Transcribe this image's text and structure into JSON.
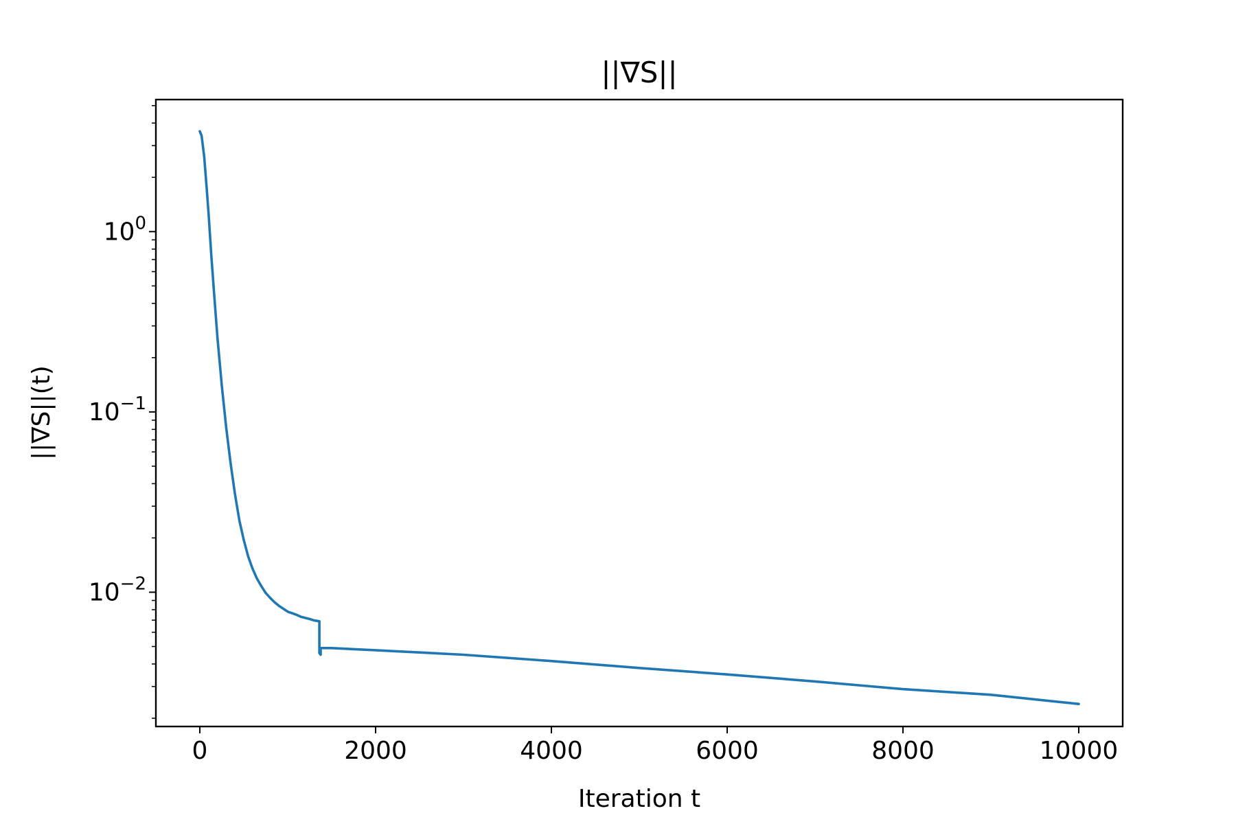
{
  "chart_data": {
    "type": "line",
    "title": "||∇S||",
    "xlabel": "Iteration t",
    "ylabel": "||∇S||(t)",
    "xlim": [
      -500,
      10500
    ],
    "ylim": [
      0.0018,
      5.4
    ],
    "yscale": "log",
    "grid": false,
    "xticks": [
      0,
      2000,
      4000,
      6000,
      8000,
      10000
    ],
    "xtick_labels": [
      "0",
      "2000",
      "4000",
      "6000",
      "8000",
      "10000"
    ],
    "yticks": [
      {
        "value": 1,
        "base": "10",
        "exp": "0"
      },
      {
        "value": 0.1,
        "base": "10",
        "exp": "−1"
      },
      {
        "value": 0.01,
        "base": "10",
        "exp": "−2"
      }
    ],
    "series": [
      {
        "color": "#1f77b4",
        "x": [
          0,
          20,
          50,
          80,
          100,
          130,
          160,
          200,
          250,
          300,
          350,
          400,
          450,
          500,
          550,
          600,
          650,
          700,
          750,
          800,
          850,
          900,
          950,
          1000,
          1050,
          1100,
          1150,
          1200,
          1250,
          1300,
          1360,
          1360,
          1375,
          1375,
          1500,
          2000,
          3000,
          4000,
          5000,
          6000,
          7000,
          8000,
          9000,
          10000
        ],
        "y": [
          3.6,
          3.4,
          2.6,
          1.7,
          1.25,
          0.75,
          0.47,
          0.26,
          0.14,
          0.082,
          0.052,
          0.035,
          0.025,
          0.0195,
          0.0158,
          0.0135,
          0.0119,
          0.0108,
          0.0099,
          0.0093,
          0.0088,
          0.0084,
          0.0081,
          0.0078,
          0.00765,
          0.0075,
          0.0073,
          0.0072,
          0.0071,
          0.00698,
          0.0069,
          0.0046,
          0.0045,
          0.0049,
          0.0049,
          0.00477,
          0.0045,
          0.00415,
          0.0038,
          0.0035,
          0.0032,
          0.0029,
          0.0027,
          0.0024
        ]
      }
    ]
  }
}
